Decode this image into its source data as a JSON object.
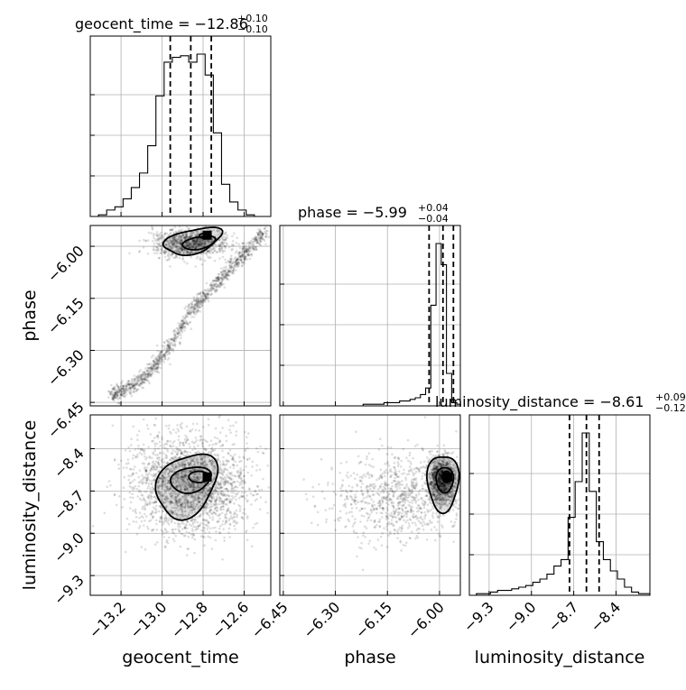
{
  "chart_data": {
    "type": "corner",
    "parameters": [
      {
        "name": "geocent_time",
        "title_prefix": "geocent_time = ",
        "median": "−12.86",
        "err_plus": "+0.10",
        "err_minus": "−0.10",
        "range": [
          -13.35,
          -12.47
        ],
        "ticks": [
          -13.2,
          -13.0,
          -12.8,
          -12.6
        ],
        "tick_labels": [
          "−13.2",
          "−13.0",
          "−12.8",
          "−12.6"
        ],
        "quantiles": [
          -12.96,
          -12.86,
          -12.76
        ],
        "hist_edges": [
          -13.35,
          -13.31,
          -13.27,
          -13.23,
          -13.19,
          -13.15,
          -13.11,
          -13.07,
          -13.03,
          -12.99,
          -12.95,
          -12.91,
          -12.87,
          -12.83,
          -12.79,
          -12.75,
          -12.71,
          -12.67,
          -12.63,
          -12.59,
          -12.55,
          -12.51,
          -12.47
        ],
        "hist_counts": [
          0,
          1,
          4,
          6,
          11,
          18,
          27,
          44,
          75,
          96,
          99,
          100,
          96,
          101,
          88,
          52,
          20,
          9,
          4,
          1,
          0,
          0
        ]
      },
      {
        "name": "phase",
        "title_prefix": "phase = ",
        "median": "−5.99",
        "err_plus": "+0.04",
        "err_minus": "−0.04",
        "range": [
          -6.46,
          -5.94
        ],
        "ticks": [
          -6.45,
          -6.3,
          -6.15,
          -6.0
        ],
        "tick_labels": [
          "−6.45",
          "−6.30",
          "−6.15",
          "−6.00"
        ],
        "quantiles": [
          -6.03,
          -5.99,
          -5.96
        ],
        "hist_edges": [
          -6.46,
          -6.445,
          -6.43,
          -6.415,
          -6.4,
          -6.385,
          -6.37,
          -6.355,
          -6.34,
          -6.325,
          -6.31,
          -6.295,
          -6.28,
          -6.265,
          -6.25,
          -6.235,
          -6.22,
          -6.205,
          -6.19,
          -6.175,
          -6.16,
          -6.145,
          -6.13,
          -6.115,
          -6.1,
          -6.085,
          -6.07,
          -6.055,
          -6.04,
          -6.025,
          -6.01,
          -5.995,
          -5.98,
          -5.965,
          -5.95,
          -5.94
        ],
        "hist_counts": [
          0,
          0,
          0,
          0,
          0,
          0,
          0,
          0,
          0,
          0,
          0,
          0,
          0,
          0,
          0,
          0,
          1,
          1,
          1,
          1,
          2,
          2,
          2,
          3,
          3,
          4,
          5,
          7,
          11,
          62,
          100,
          87,
          20,
          2,
          1
        ]
      },
      {
        "name": "luminosity_distance",
        "title_prefix": "luminosity_distance = ",
        "median": "−8.61",
        "err_plus": "+0.09",
        "err_minus": "−0.12",
        "range": [
          -9.44,
          -8.16
        ],
        "ticks": [
          -9.3,
          -9.0,
          -8.7,
          -8.4
        ],
        "tick_labels": [
          "−9.3",
          "−9.0",
          "−8.7",
          "−8.4"
        ],
        "quantiles": [
          -8.73,
          -8.61,
          -8.52
        ],
        "hist_edges": [
          -9.44,
          -9.39,
          -9.34,
          -9.29,
          -9.24,
          -9.19,
          -9.14,
          -9.09,
          -9.04,
          -8.99,
          -8.94,
          -8.89,
          -8.84,
          -8.79,
          -8.74,
          -8.69,
          -8.64,
          -8.59,
          -8.54,
          -8.49,
          -8.44,
          -8.39,
          -8.34,
          -8.29,
          -8.24,
          -8.16
        ],
        "hist_counts": [
          0,
          1,
          1,
          2,
          3,
          3,
          4,
          5,
          6,
          8,
          10,
          13,
          18,
          22,
          48,
          70,
          100,
          64,
          33,
          22,
          15,
          10,
          5,
          2,
          1
        ]
      }
    ],
    "grid": true
  }
}
